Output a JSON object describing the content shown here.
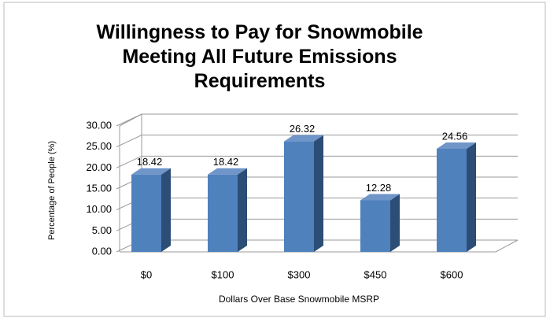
{
  "chart_data": {
    "type": "bar3d",
    "title": "Willingness to Pay for Snowmobile Meeting All Future Emissions Requirements",
    "x_label": "Dollars Over Base Snowmobile MSRP",
    "y_label": "Percentage of People (%)",
    "categories": [
      "$0",
      "$100",
      "$300",
      "$450",
      "$600"
    ],
    "values": [
      18.42,
      18.42,
      26.32,
      12.28,
      24.56
    ],
    "color": "#4f81bd",
    "ylim": [
      0,
      30
    ],
    "yticks": [
      {
        "value": 0,
        "label": "0.00"
      },
      {
        "value": 5,
        "label": "5.00"
      },
      {
        "value": 10,
        "label": "10.00"
      },
      {
        "value": 15,
        "label": "15.00"
      },
      {
        "value": 20,
        "label": "20.00"
      },
      {
        "value": 25,
        "label": "25.00"
      },
      {
        "value": 30,
        "label": "30.00"
      }
    ],
    "grid": true
  }
}
